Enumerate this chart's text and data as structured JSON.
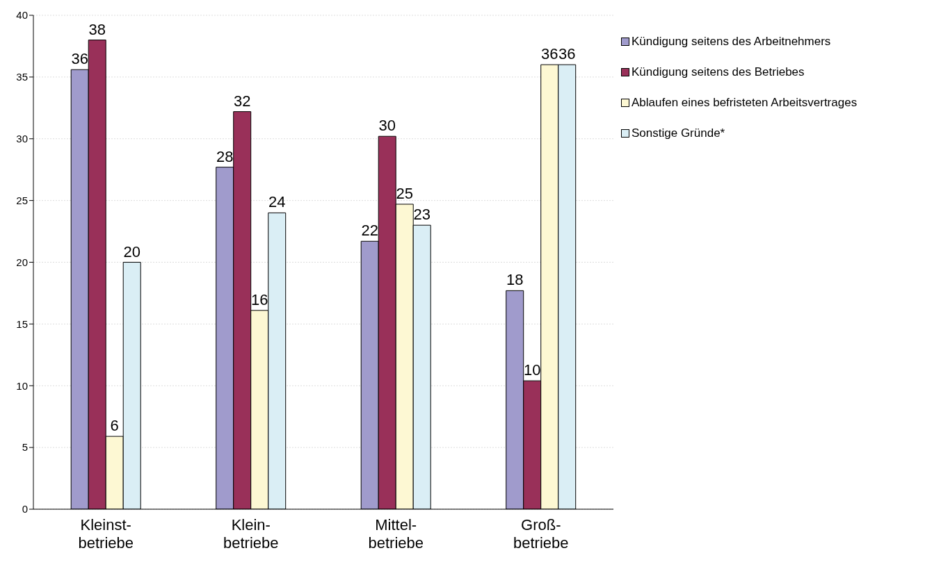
{
  "chart_data": {
    "type": "bar",
    "categories": [
      "Kleinst-\nbetriebe",
      "Klein-\nbetriebe",
      "Mittel-\nbetriebe",
      "Groß-\nbetriebe"
    ],
    "series": [
      {
        "name": "Kündigung seitens des Arbeitnehmers",
        "color": "#a09bcc",
        "values": [
          35.6,
          27.7,
          21.7,
          17.7
        ],
        "value_labels": [
          "36",
          "28",
          "22",
          "18"
        ]
      },
      {
        "name": "Kündigung seitens des Betriebes",
        "color": "#993059",
        "values": [
          38.0,
          32.2,
          30.2,
          10.4
        ],
        "value_labels": [
          "38",
          "32",
          "30",
          "10"
        ]
      },
      {
        "name": "Ablaufen eines befristeten Arbeitsvertrages",
        "color": "#fdf8d3",
        "values": [
          5.9,
          16.1,
          24.7,
          36.0
        ],
        "value_labels": [
          "6",
          "16",
          "25",
          "36"
        ]
      },
      {
        "name": "Sonstige Gründe*",
        "color": "#daeef5",
        "values": [
          20.0,
          24.0,
          23.0,
          36.0
        ],
        "value_labels": [
          "20",
          "24",
          "23",
          "36"
        ]
      }
    ],
    "ylim": [
      0,
      40
    ],
    "yticks": [
      0,
      5,
      10,
      15,
      20,
      25,
      30,
      35,
      40
    ],
    "grid": "y",
    "legend": "top right"
  }
}
